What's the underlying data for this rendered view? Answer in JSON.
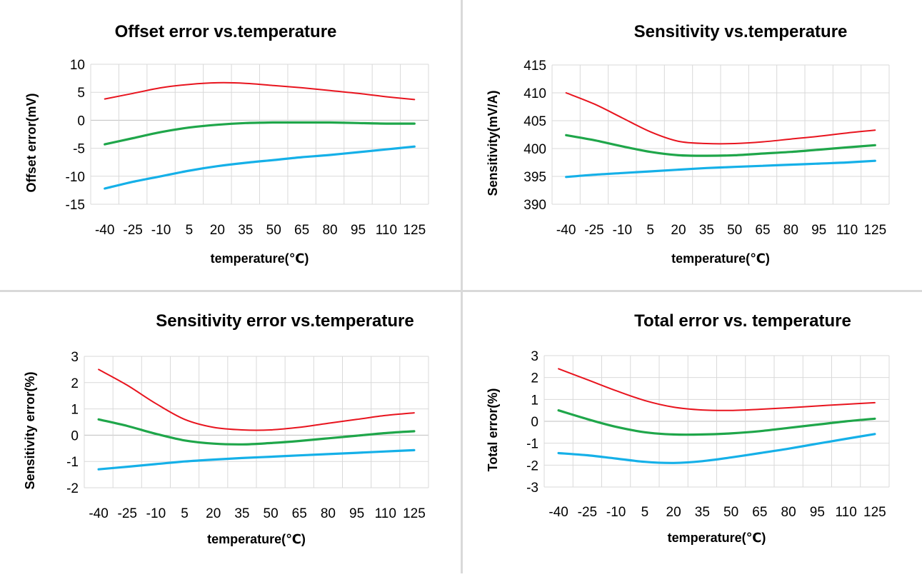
{
  "chart_data": [
    {
      "type": "line",
      "title": "Offset error vs.temperature",
      "xlabel": "temperature(℃)",
      "ylabel": "Offset error(mV)",
      "ylim": [
        -15,
        10
      ],
      "yticks": [
        "10",
        "5",
        "0",
        "-5",
        "-10",
        "-15"
      ],
      "categories": [
        "-40",
        "-25",
        "-10",
        "5",
        "20",
        "35",
        "50",
        "65",
        "80",
        "95",
        "110",
        "125"
      ],
      "grid": true,
      "legend": "none",
      "series": [
        {
          "color": "#e8141e",
          "values": [
            3.8,
            4.8,
            5.8,
            6.4,
            6.7,
            6.6,
            6.2,
            5.8,
            5.3,
            4.8,
            4.2,
            3.7
          ]
        },
        {
          "color": "#1fa64a",
          "values": [
            -4.3,
            -3.2,
            -2.1,
            -1.3,
            -0.8,
            -0.5,
            -0.4,
            -0.4,
            -0.4,
            -0.5,
            -0.6,
            -0.6
          ]
        },
        {
          "color": "#15b0e8",
          "values": [
            -12.2,
            -11.0,
            -10.0,
            -9.0,
            -8.2,
            -7.6,
            -7.1,
            -6.6,
            -6.2,
            -5.7,
            -5.2,
            -4.7
          ]
        }
      ]
    },
    {
      "type": "line",
      "title": "Sensitivity vs.temperature",
      "xlabel": "temperature(℃)",
      "ylabel": "Sensitivity(mV/A)",
      "ylim": [
        390,
        415
      ],
      "yticks": [
        "415",
        "410",
        "405",
        "400",
        "395",
        "390"
      ],
      "categories": [
        "-40",
        "-25",
        "-10",
        "5",
        "20",
        "35",
        "50",
        "65",
        "80",
        "95",
        "110",
        "125"
      ],
      "grid": true,
      "legend": "none",
      "series": [
        {
          "color": "#e8141e",
          "values": [
            410.0,
            408.0,
            405.5,
            403.0,
            401.3,
            400.9,
            400.9,
            401.2,
            401.7,
            402.2,
            402.8,
            403.3
          ]
        },
        {
          "color": "#1fa64a",
          "values": [
            402.4,
            401.5,
            400.4,
            399.4,
            398.8,
            398.7,
            398.8,
            399.1,
            399.4,
            399.8,
            400.2,
            400.6
          ]
        },
        {
          "color": "#15b0e8",
          "values": [
            394.9,
            395.3,
            395.6,
            395.9,
            396.2,
            396.5,
            396.7,
            396.9,
            397.1,
            397.3,
            397.5,
            397.8
          ]
        }
      ]
    },
    {
      "type": "line",
      "title": "Sensitivity error vs.temperature",
      "xlabel": "temperature(℃)",
      "ylabel": "Sensitivity error(%)",
      "ylim": [
        -2,
        3
      ],
      "yticks": [
        "3",
        "2",
        "1",
        "0",
        "-1",
        "-2"
      ],
      "categories": [
        "-40",
        "-25",
        "-10",
        "5",
        "20",
        "35",
        "50",
        "65",
        "80",
        "95",
        "110",
        "125"
      ],
      "grid": true,
      "legend": "none",
      "series": [
        {
          "color": "#e8141e",
          "values": [
            2.5,
            1.9,
            1.2,
            0.6,
            0.3,
            0.2,
            0.2,
            0.3,
            0.45,
            0.6,
            0.75,
            0.85
          ]
        },
        {
          "color": "#1fa64a",
          "values": [
            0.6,
            0.35,
            0.05,
            -0.2,
            -0.32,
            -0.35,
            -0.3,
            -0.22,
            -0.12,
            -0.02,
            0.08,
            0.15
          ]
        },
        {
          "color": "#15b0e8",
          "values": [
            -1.3,
            -1.2,
            -1.1,
            -1.0,
            -0.93,
            -0.87,
            -0.82,
            -0.77,
            -0.72,
            -0.67,
            -0.62,
            -0.57
          ]
        }
      ]
    },
    {
      "type": "line",
      "title": "Total error vs. temperature",
      "xlabel": "temperature(℃)",
      "ylabel": "Total error(%)",
      "ylim": [
        -3,
        3
      ],
      "yticks": [
        "3",
        "2",
        "1",
        "0",
        "-1",
        "-2",
        "-3"
      ],
      "categories": [
        "-40",
        "-25",
        "-10",
        "5",
        "20",
        "35",
        "50",
        "65",
        "80",
        "95",
        "110",
        "125"
      ],
      "grid": true,
      "legend": "none",
      "series": [
        {
          "color": "#e8141e",
          "values": [
            2.4,
            1.9,
            1.4,
            0.95,
            0.65,
            0.52,
            0.5,
            0.55,
            0.62,
            0.7,
            0.78,
            0.85
          ]
        },
        {
          "color": "#1fa64a",
          "values": [
            0.5,
            0.1,
            -0.25,
            -0.5,
            -0.6,
            -0.6,
            -0.55,
            -0.45,
            -0.3,
            -0.15,
            0.0,
            0.12
          ]
        },
        {
          "color": "#15b0e8",
          "values": [
            -1.45,
            -1.55,
            -1.7,
            -1.85,
            -1.9,
            -1.82,
            -1.65,
            -1.45,
            -1.25,
            -1.02,
            -0.8,
            -0.58
          ]
        }
      ]
    }
  ]
}
